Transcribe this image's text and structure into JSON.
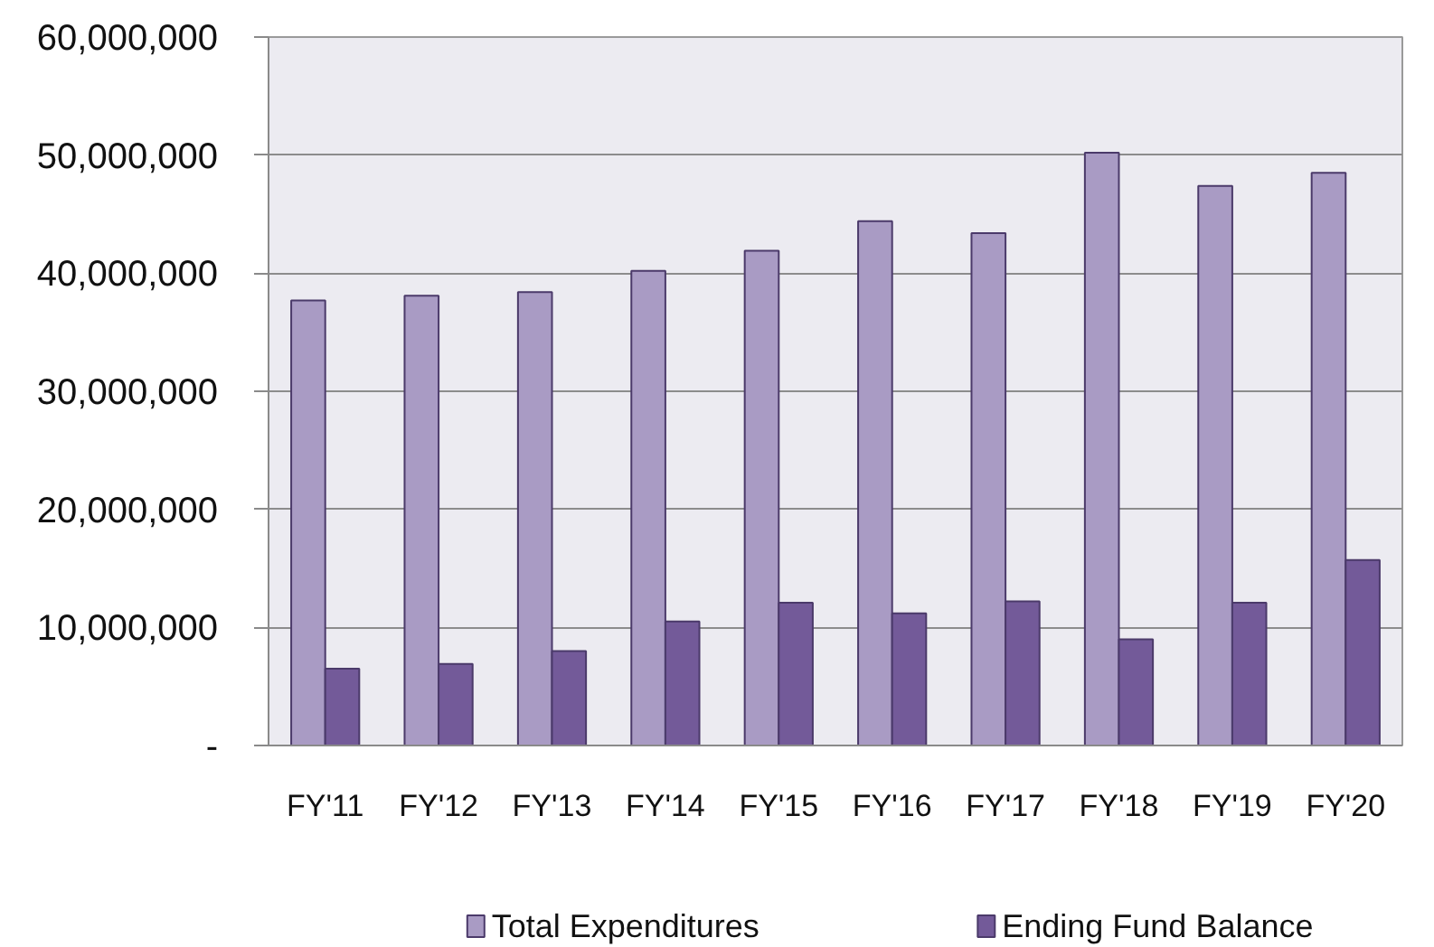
{
  "chart_data": {
    "type": "bar",
    "categories": [
      "FY'11",
      "FY'12",
      "FY'13",
      "FY'14",
      "FY'15",
      "FY'16",
      "FY'17",
      "FY'18",
      "FY'19",
      "FY'20"
    ],
    "series": [
      {
        "name": "Total Expenditures",
        "color": "#a99bc4",
        "values": [
          37700000,
          38100000,
          38400000,
          40200000,
          41900000,
          44400000,
          43400000,
          50200000,
          47400000,
          48500000
        ]
      },
      {
        "name": "Ending Fund Balance",
        "color": "#735a99",
        "values": [
          6500000,
          6900000,
          8000000,
          10500000,
          12100000,
          11200000,
          12200000,
          9000000,
          12100000,
          15700000
        ]
      }
    ],
    "ylim": [
      0,
      60000000
    ],
    "yticks": [
      {
        "value": 0,
        "label": "-"
      },
      {
        "value": 10000000,
        "label": "10,000,000"
      },
      {
        "value": 20000000,
        "label": "20,000,000"
      },
      {
        "value": 30000000,
        "label": "30,000,000"
      },
      {
        "value": 40000000,
        "label": "40,000,000"
      },
      {
        "value": 50000000,
        "label": "50,000,000"
      },
      {
        "value": 60000000,
        "label": "60,000,000"
      }
    ],
    "grid": "y",
    "legend": "bottom"
  }
}
